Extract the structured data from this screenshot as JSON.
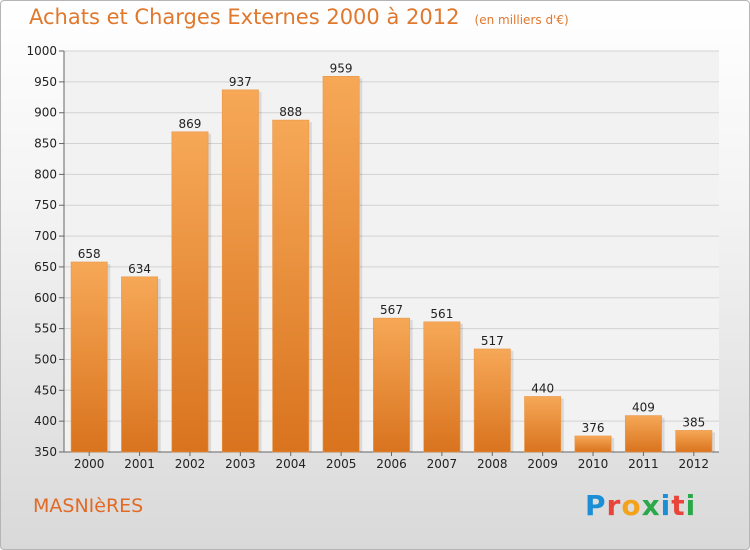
{
  "header": {
    "title": "Achats et Charges Externes 2000 à 2012",
    "subtitle": "(en milliers d'€)"
  },
  "footer": {
    "commune": "MASNIèRES",
    "logo": {
      "text": "Proxiti",
      "letter_colors": [
        "#1b8fd6",
        "#e8443a",
        "#f3a21c",
        "#2aa84a",
        "#1b8fd6",
        "#e8443a",
        "#2aa84a"
      ]
    }
  },
  "colors": {
    "bar_top": "#f6a857",
    "bar_bottom": "#d9731e",
    "accent": "#e0782e"
  },
  "chart_data": {
    "type": "bar",
    "title": "Achats et Charges Externes 2000 à 2012",
    "subtitle": "(en milliers d'€)",
    "xlabel": "",
    "ylabel": "",
    "categories": [
      "2000",
      "2001",
      "2002",
      "2003",
      "2004",
      "2005",
      "2006",
      "2007",
      "2008",
      "2009",
      "2010",
      "2011",
      "2012"
    ],
    "values": [
      658,
      634,
      869,
      937,
      888,
      959,
      567,
      561,
      517,
      440,
      376,
      409,
      385
    ],
    "ylim": [
      350,
      1000
    ],
    "yticks": [
      350,
      400,
      450,
      500,
      550,
      600,
      650,
      700,
      750,
      800,
      850,
      900,
      950,
      1000
    ],
    "grid": true,
    "data_labels": true
  }
}
